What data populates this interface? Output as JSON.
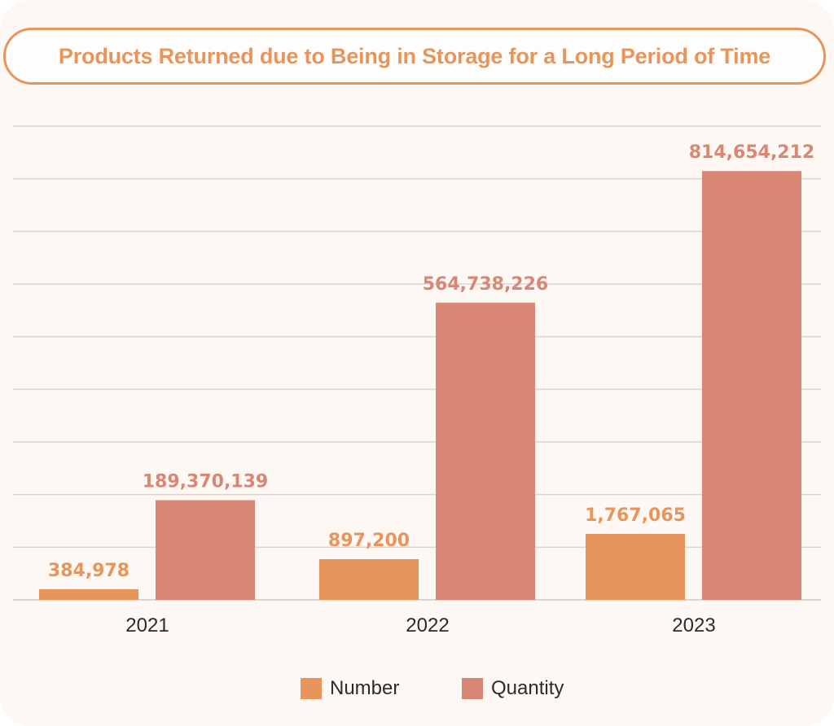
{
  "colors": {
    "number": "#e8955c",
    "quantity": "#d98775",
    "gridline": "#d9d4d0",
    "axis_text": "#2b2b2b"
  },
  "chart_data": {
    "type": "bar",
    "title": "Products Returned due to Being in Storage for a Long Period of Time",
    "categories": [
      "2021",
      "2022",
      "2023"
    ],
    "series": [
      {
        "name": "Number",
        "values": [
          384978,
          897200,
          1767065
        ],
        "labels": [
          "384,978",
          "897,200",
          "1,767,065"
        ]
      },
      {
        "name": "Quantity",
        "values": [
          189370139,
          564738226,
          814654212
        ],
        "labels": [
          "189,370,139",
          "564,738,226",
          "814,654,212"
        ]
      }
    ],
    "grid": true,
    "legend_position": "bottom"
  }
}
